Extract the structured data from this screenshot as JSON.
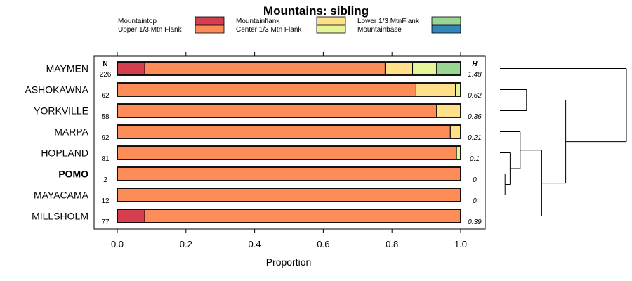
{
  "chart_data": {
    "type": "bar",
    "orientation": "horizontal",
    "stacked": true,
    "title": "Mountains: sibling",
    "xlabel": "Proportion",
    "xlim": [
      0,
      1
    ],
    "xticks": [
      "0.0",
      "0.2",
      "0.4",
      "0.6",
      "0.8",
      "1.0"
    ],
    "n_header": "N",
    "h_header": "H",
    "legend": [
      {
        "name": "Mountaintop",
        "color": "#d53e4f"
      },
      {
        "name": "Upper 1/3 Mtn Flank",
        "color": "#fc8d59"
      },
      {
        "name": "Mountainflank",
        "color": "#fee08b"
      },
      {
        "name": "Center 1/3 Mtn Flank",
        "color": "#e6f598"
      },
      {
        "name": "Lower 1/3 MtnFlank",
        "color": "#99d594"
      },
      {
        "name": "Mountainbase",
        "color": "#3288bd"
      }
    ],
    "rows": [
      {
        "label": "MAYMEN",
        "bold": false,
        "n": "226",
        "h": "1.48",
        "segments": [
          {
            "category": "Mountaintop",
            "value": 0.08
          },
          {
            "category": "Upper 1/3 Mtn Flank",
            "value": 0.7
          },
          {
            "category": "Mountainflank",
            "value": 0.08
          },
          {
            "category": "Center 1/3 Mtn Flank",
            "value": 0.07
          },
          {
            "category": "Lower 1/3 MtnFlank",
            "value": 0.07
          }
        ]
      },
      {
        "label": "ASHOKAWNA",
        "bold": false,
        "n": "62",
        "h": "0.62",
        "segments": [
          {
            "category": "Upper 1/3 Mtn Flank",
            "value": 0.87
          },
          {
            "category": "Mountainflank",
            "value": 0.115
          },
          {
            "category": "Center 1/3 Mtn Flank",
            "value": 0.015
          }
        ]
      },
      {
        "label": "YORKVILLE",
        "bold": false,
        "n": "58",
        "h": "0.36",
        "segments": [
          {
            "category": "Upper 1/3 Mtn Flank",
            "value": 0.93
          },
          {
            "category": "Mountainflank",
            "value": 0.07
          }
        ]
      },
      {
        "label": "MARPA",
        "bold": false,
        "n": "92",
        "h": "0.21",
        "segments": [
          {
            "category": "Upper 1/3 Mtn Flank",
            "value": 0.97
          },
          {
            "category": "Mountainflank",
            "value": 0.03
          }
        ]
      },
      {
        "label": "HOPLAND",
        "bold": false,
        "n": "81",
        "h": "0.1",
        "segments": [
          {
            "category": "Upper 1/3 Mtn Flank",
            "value": 0.988
          },
          {
            "category": "Center 1/3 Mtn Flank",
            "value": 0.012
          }
        ]
      },
      {
        "label": "POMO",
        "bold": true,
        "n": "2",
        "h": "0",
        "segments": [
          {
            "category": "Upper 1/3 Mtn Flank",
            "value": 1.0
          }
        ]
      },
      {
        "label": "MAYACAMA",
        "bold": false,
        "n": "12",
        "h": "0",
        "segments": [
          {
            "category": "Upper 1/3 Mtn Flank",
            "value": 1.0
          }
        ]
      },
      {
        "label": "MILLSHOLM",
        "bold": false,
        "n": "77",
        "h": "0.39",
        "segments": [
          {
            "category": "Mountaintop",
            "value": 0.08
          },
          {
            "category": "Upper 1/3 Mtn Flank",
            "value": 0.92
          }
        ]
      }
    ],
    "dendrogram": {
      "leaves": [
        "MAYMEN",
        "ASHOKAWNA",
        "YORKVILLE",
        "MARPA",
        "HOPLAND",
        "POMO",
        "MAYACAMA",
        "MILLSHOLM"
      ],
      "merges": [
        {
          "left": "leaf:5",
          "right": "leaf:6",
          "height": 0.04
        },
        {
          "left": "leaf:4",
          "right": "node:0",
          "height": 0.08
        },
        {
          "left": "leaf:3",
          "right": "node:1",
          "height": 0.16
        },
        {
          "left": "leaf:1",
          "right": "leaf:2",
          "height": 0.21
        },
        {
          "left": "node:2",
          "right": "leaf:7",
          "height": 0.33
        },
        {
          "left": "node:3",
          "right": "node:4",
          "height": 0.52
        },
        {
          "left": "leaf:0",
          "right": "node:5",
          "height": 1.0
        }
      ]
    }
  }
}
